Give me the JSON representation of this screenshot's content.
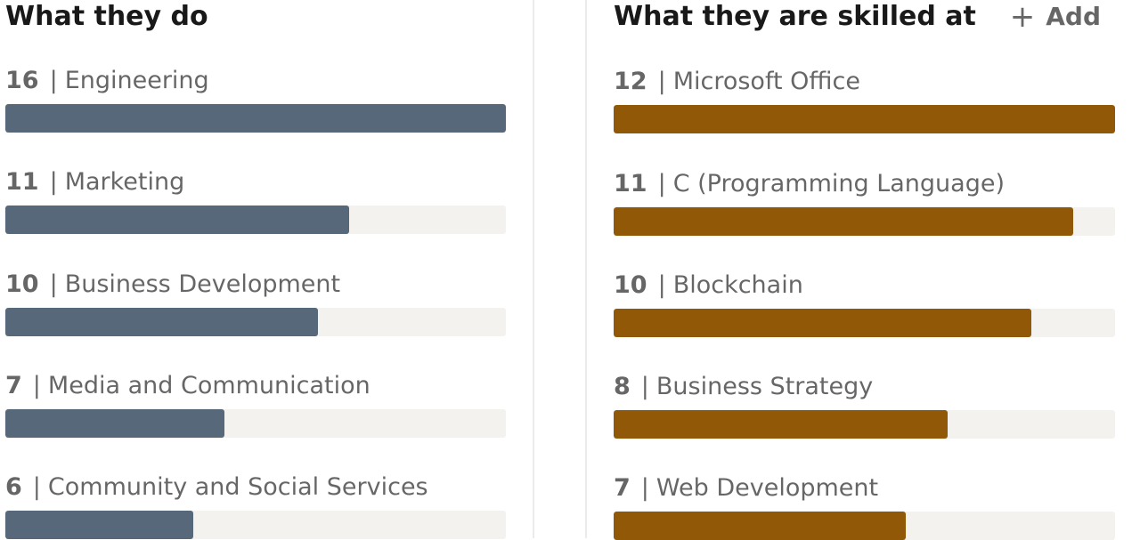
{
  "colors": {
    "what_they_do_bar": "#56687a",
    "skills_bar": "#915907",
    "track": "#f3f2ef"
  },
  "what_they_do": {
    "title": "What they do",
    "items": [
      {
        "count": "16",
        "label": "Engineering",
        "value": 16
      },
      {
        "count": "11",
        "label": "Marketing",
        "value": 11
      },
      {
        "count": "10",
        "label": "Business Development",
        "value": 10
      },
      {
        "count": "7",
        "label": "Media and Communication",
        "value": 7
      },
      {
        "count": "6",
        "label": "Community and Social Services",
        "value": 6
      }
    ]
  },
  "skills": {
    "title": "What they are skilled at",
    "add_label": "Add",
    "add_icon": "plus-icon",
    "items": [
      {
        "count": "12",
        "label": "Microsoft Office",
        "value": 12
      },
      {
        "count": "11",
        "label": "C (Programming Language)",
        "value": 11
      },
      {
        "count": "10",
        "label": "Blockchain",
        "value": 10
      },
      {
        "count": "8",
        "label": "Business Strategy",
        "value": 8
      },
      {
        "count": "7",
        "label": "Web Development",
        "value": 7
      }
    ]
  }
}
